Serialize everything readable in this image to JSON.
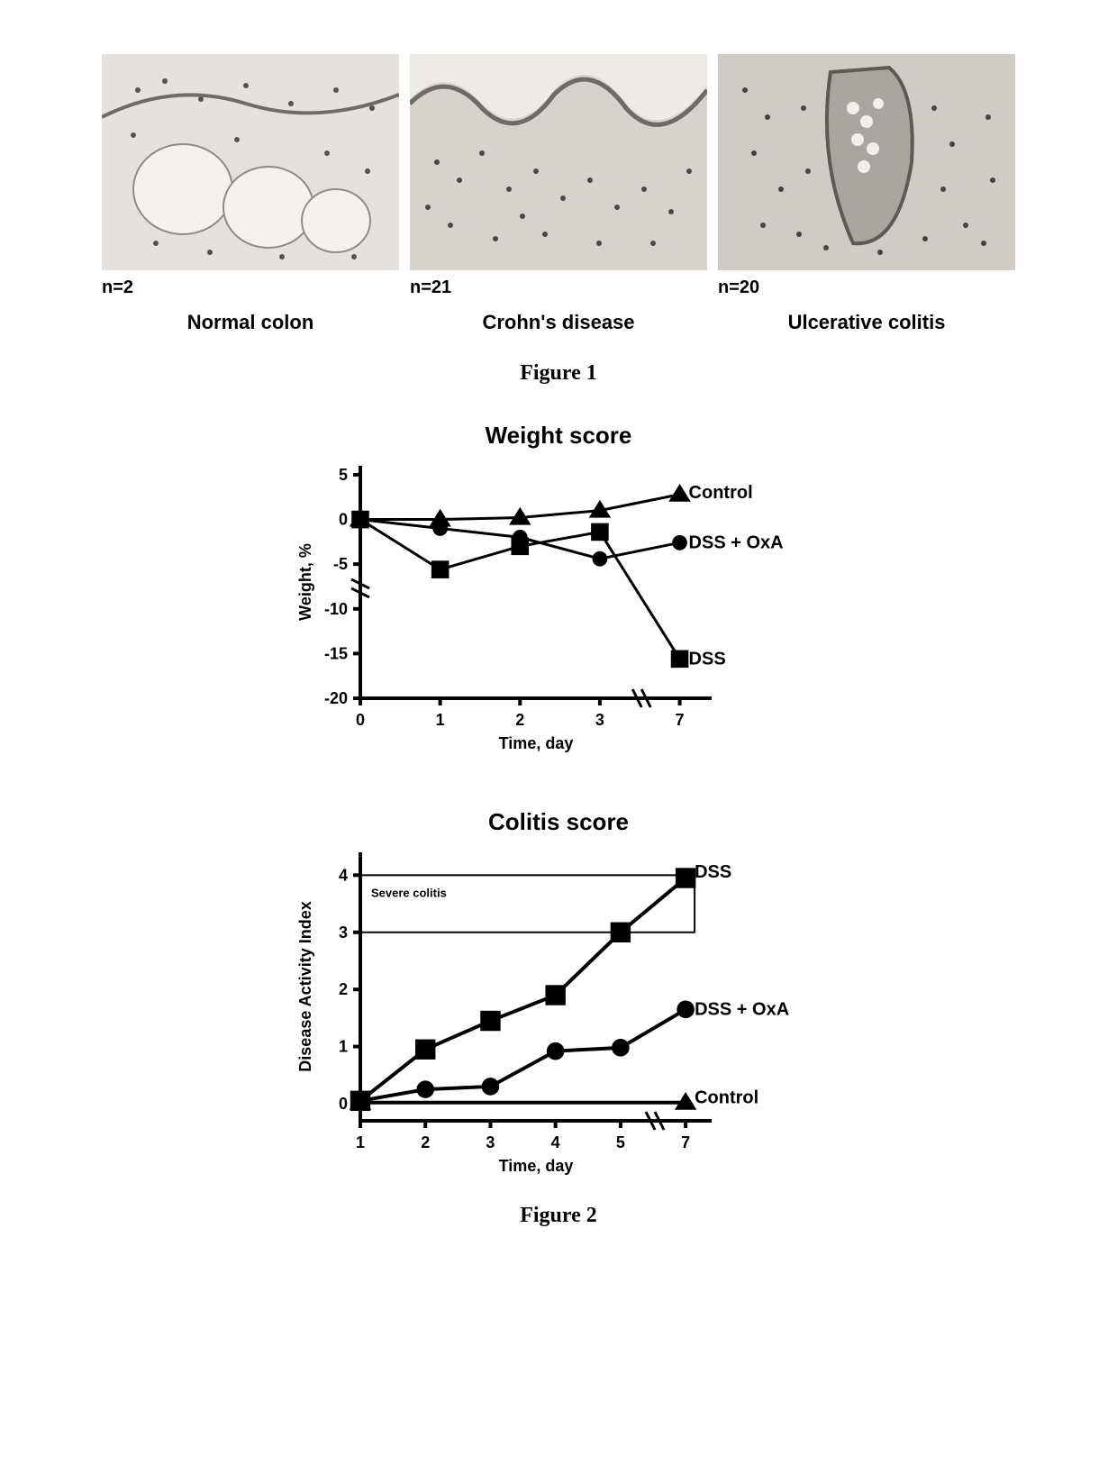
{
  "figure1": {
    "panels": [
      {
        "n_label": "n=2",
        "title": "Normal colon"
      },
      {
        "n_label": "n=21",
        "title": "Crohn's disease"
      },
      {
        "n_label": "n=20",
        "title": "Ulcerative colitis"
      }
    ],
    "caption": "Figure 1"
  },
  "figure2": {
    "caption": "Figure 2",
    "weight_chart": {
      "type": "line",
      "title": "Weight score",
      "xlabel": "Time, day",
      "ylabel": "Weight, %",
      "x_ticks": [
        0,
        1,
        2,
        3,
        7
      ],
      "y_ticks": [
        -20,
        -15,
        -10,
        -5,
        0,
        5
      ],
      "xlim": [
        -0.3,
        7.7
      ],
      "ylim": [
        -20,
        6
      ],
      "axis_break_x_between": [
        3,
        7
      ],
      "axis_break_y_between": [
        -10,
        -5
      ],
      "axis_color": "#000000",
      "axis_width": 4,
      "tick_fontsize": 18,
      "label_fontsize": 18,
      "title_fontsize": 26,
      "background_color": "#ffffff",
      "series": [
        {
          "name": "Control",
          "marker": "triangle",
          "marker_size": 14,
          "color": "#000000",
          "line_width": 3,
          "points": [
            {
              "x": 0,
              "y": 0.0
            },
            {
              "x": 1,
              "y": 0.0
            },
            {
              "x": 2,
              "y": 0.2
            },
            {
              "x": 3,
              "y": 1.0
            },
            {
              "x": 7,
              "y": 2.8
            }
          ],
          "label_pos": {
            "x": 7.1,
            "y": 3.0
          }
        },
        {
          "name": "DSS + OxA",
          "marker": "circle",
          "marker_size": 12,
          "color": "#000000",
          "line_width": 3,
          "points": [
            {
              "x": 0,
              "y": 0.0
            },
            {
              "x": 1,
              "y": -1.0
            },
            {
              "x": 2,
              "y": -2.0
            },
            {
              "x": 3,
              "y": -4.4
            },
            {
              "x": 7,
              "y": -2.6
            }
          ],
          "label_pos": {
            "x": 7.1,
            "y": -2.6
          }
        },
        {
          "name": "DSS",
          "marker": "square",
          "marker_size": 14,
          "color": "#000000",
          "line_width": 3,
          "points": [
            {
              "x": 0,
              "y": 0.0
            },
            {
              "x": 1,
              "y": -5.6
            },
            {
              "x": 2,
              "y": -3.0
            },
            {
              "x": 3,
              "y": -1.4
            },
            {
              "x": 7,
              "y": -15.6
            }
          ],
          "label_pos": {
            "x": 7.1,
            "y": -15.6
          }
        }
      ]
    },
    "colitis_chart": {
      "type": "line",
      "title": "Colitis score",
      "xlabel": "Time, day",
      "ylabel": "Disease Activity Index",
      "x_ticks": [
        1,
        2,
        3,
        4,
        5,
        7
      ],
      "y_ticks": [
        0,
        1,
        2,
        3,
        4
      ],
      "xlim": [
        0.5,
        7.7
      ],
      "ylim": [
        -0.3,
        4.4
      ],
      "axis_break_x_between": [
        5,
        7
      ],
      "axis_color": "#000000",
      "axis_width": 4,
      "tick_fontsize": 18,
      "label_fontsize": 18,
      "title_fontsize": 26,
      "background_color": "#ffffff",
      "annotation_box": {
        "label": "Severe colitis",
        "y_from": 3,
        "y_to": 4,
        "x_from": 1,
        "x_to": 7.5,
        "border_color": "#000000",
        "border_width": 2
      },
      "series": [
        {
          "name": "DSS",
          "marker": "square",
          "marker_size": 16,
          "color": "#000000",
          "line_width": 4,
          "points": [
            {
              "x": 1,
              "y": 0.05
            },
            {
              "x": 2,
              "y": 0.95
            },
            {
              "x": 3,
              "y": 1.45
            },
            {
              "x": 4,
              "y": 1.9
            },
            {
              "x": 5,
              "y": 3.0
            },
            {
              "x": 7,
              "y": 3.95
            }
          ],
          "label_pos": {
            "x": 7.1,
            "y": 4.05
          }
        },
        {
          "name": "DSS + OxA",
          "marker": "circle",
          "marker_size": 14,
          "color": "#000000",
          "line_width": 4,
          "points": [
            {
              "x": 1,
              "y": 0.05
            },
            {
              "x": 2,
              "y": 0.25
            },
            {
              "x": 3,
              "y": 0.3
            },
            {
              "x": 4,
              "y": 0.92
            },
            {
              "x": 5,
              "y": 0.98
            },
            {
              "x": 7,
              "y": 1.65
            }
          ],
          "label_pos": {
            "x": 7.1,
            "y": 1.65
          }
        },
        {
          "name": "Control",
          "marker": "triangle",
          "marker_size": 14,
          "color": "#000000",
          "line_width": 4,
          "points": [
            {
              "x": 1,
              "y": 0.02
            },
            {
              "x": 7,
              "y": 0.02
            }
          ],
          "label_pos": {
            "x": 7.1,
            "y": 0.1
          }
        }
      ]
    }
  }
}
